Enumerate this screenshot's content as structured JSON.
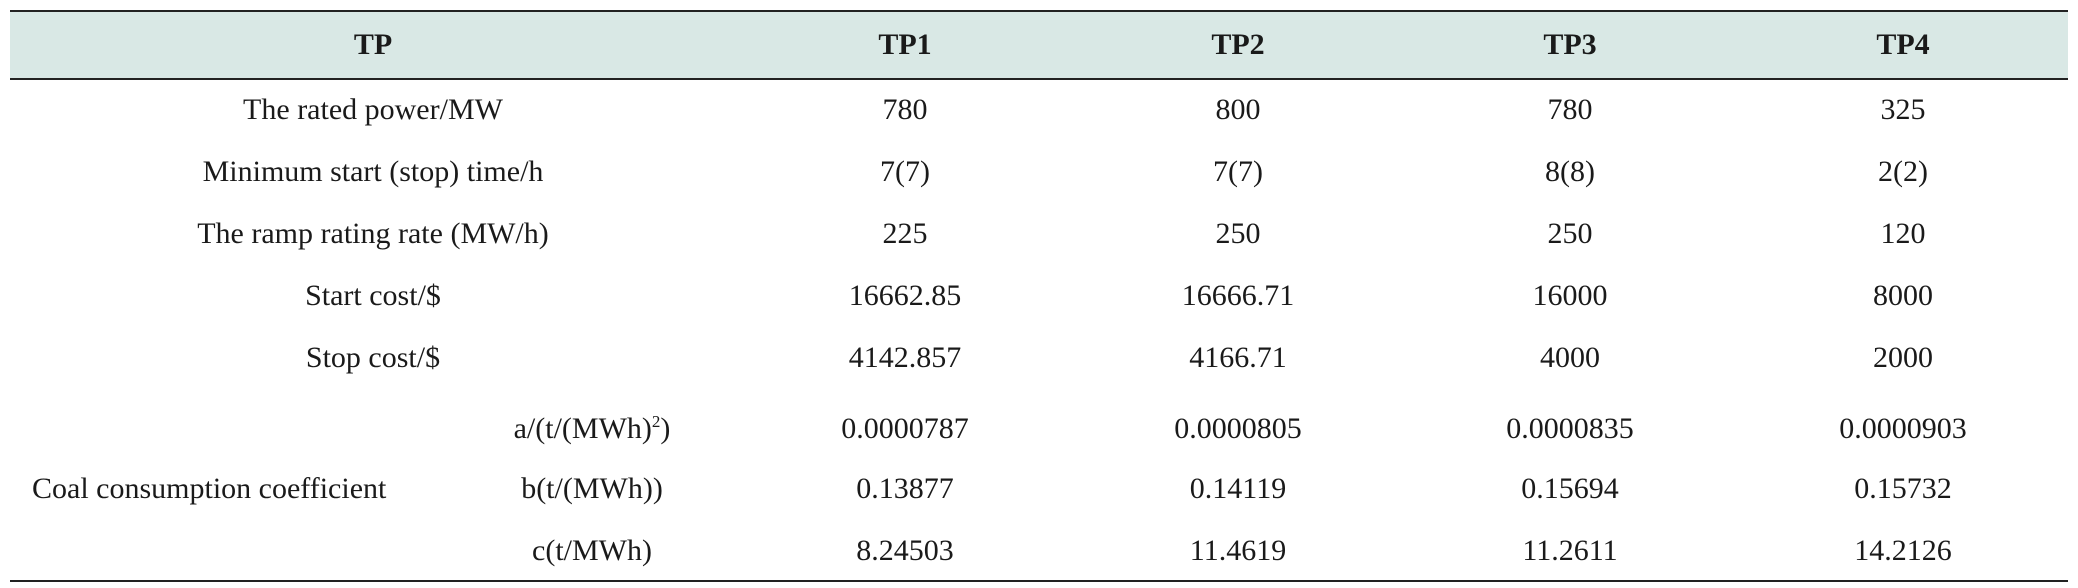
{
  "table": {
    "header": [
      "TP",
      "TP1",
      "TP2",
      "TP3",
      "TP4"
    ],
    "rows": [
      {
        "label": "The rated power/MW",
        "values": [
          "780",
          "800",
          "780",
          "325"
        ]
      },
      {
        "label": "Minimum start (stop) time/h",
        "values": [
          "7(7)",
          "7(7)",
          "8(8)",
          "2(2)"
        ]
      },
      {
        "label": "The ramp rating rate (MW/h)",
        "values": [
          "225",
          "250",
          "250",
          "120"
        ]
      },
      {
        "label": "Start cost/$",
        "values": [
          "16662.85",
          "16666.71",
          "16000",
          "8000"
        ]
      },
      {
        "label": "Stop cost/$",
        "values": [
          "4142.857",
          "4166.71",
          "4000",
          "2000"
        ]
      }
    ],
    "coal": {
      "group_label": "Coal consumption coefficient",
      "rows": [
        {
          "sub_prefix": "a/(t/(MWh)",
          "sub_sup": "2",
          "sub_suffix": ")",
          "values": [
            "0.0000787",
            "0.0000805",
            "0.0000835",
            "0.0000903"
          ]
        },
        {
          "sub_prefix": "b(t/(MWh))",
          "sub_sup": "",
          "sub_suffix": "",
          "values": [
            "0.13877",
            "0.14119",
            "0.15694",
            "0.15732"
          ]
        },
        {
          "sub_prefix": "c(t/MWh)",
          "sub_sup": "",
          "sub_suffix": "",
          "values": [
            "8.24503",
            "11.4619",
            "11.2611",
            "14.2126"
          ]
        }
      ]
    }
  },
  "colors": {
    "header_bg": "#d9e8e5",
    "rule": "#222222",
    "text": "#1a1a1a"
  }
}
